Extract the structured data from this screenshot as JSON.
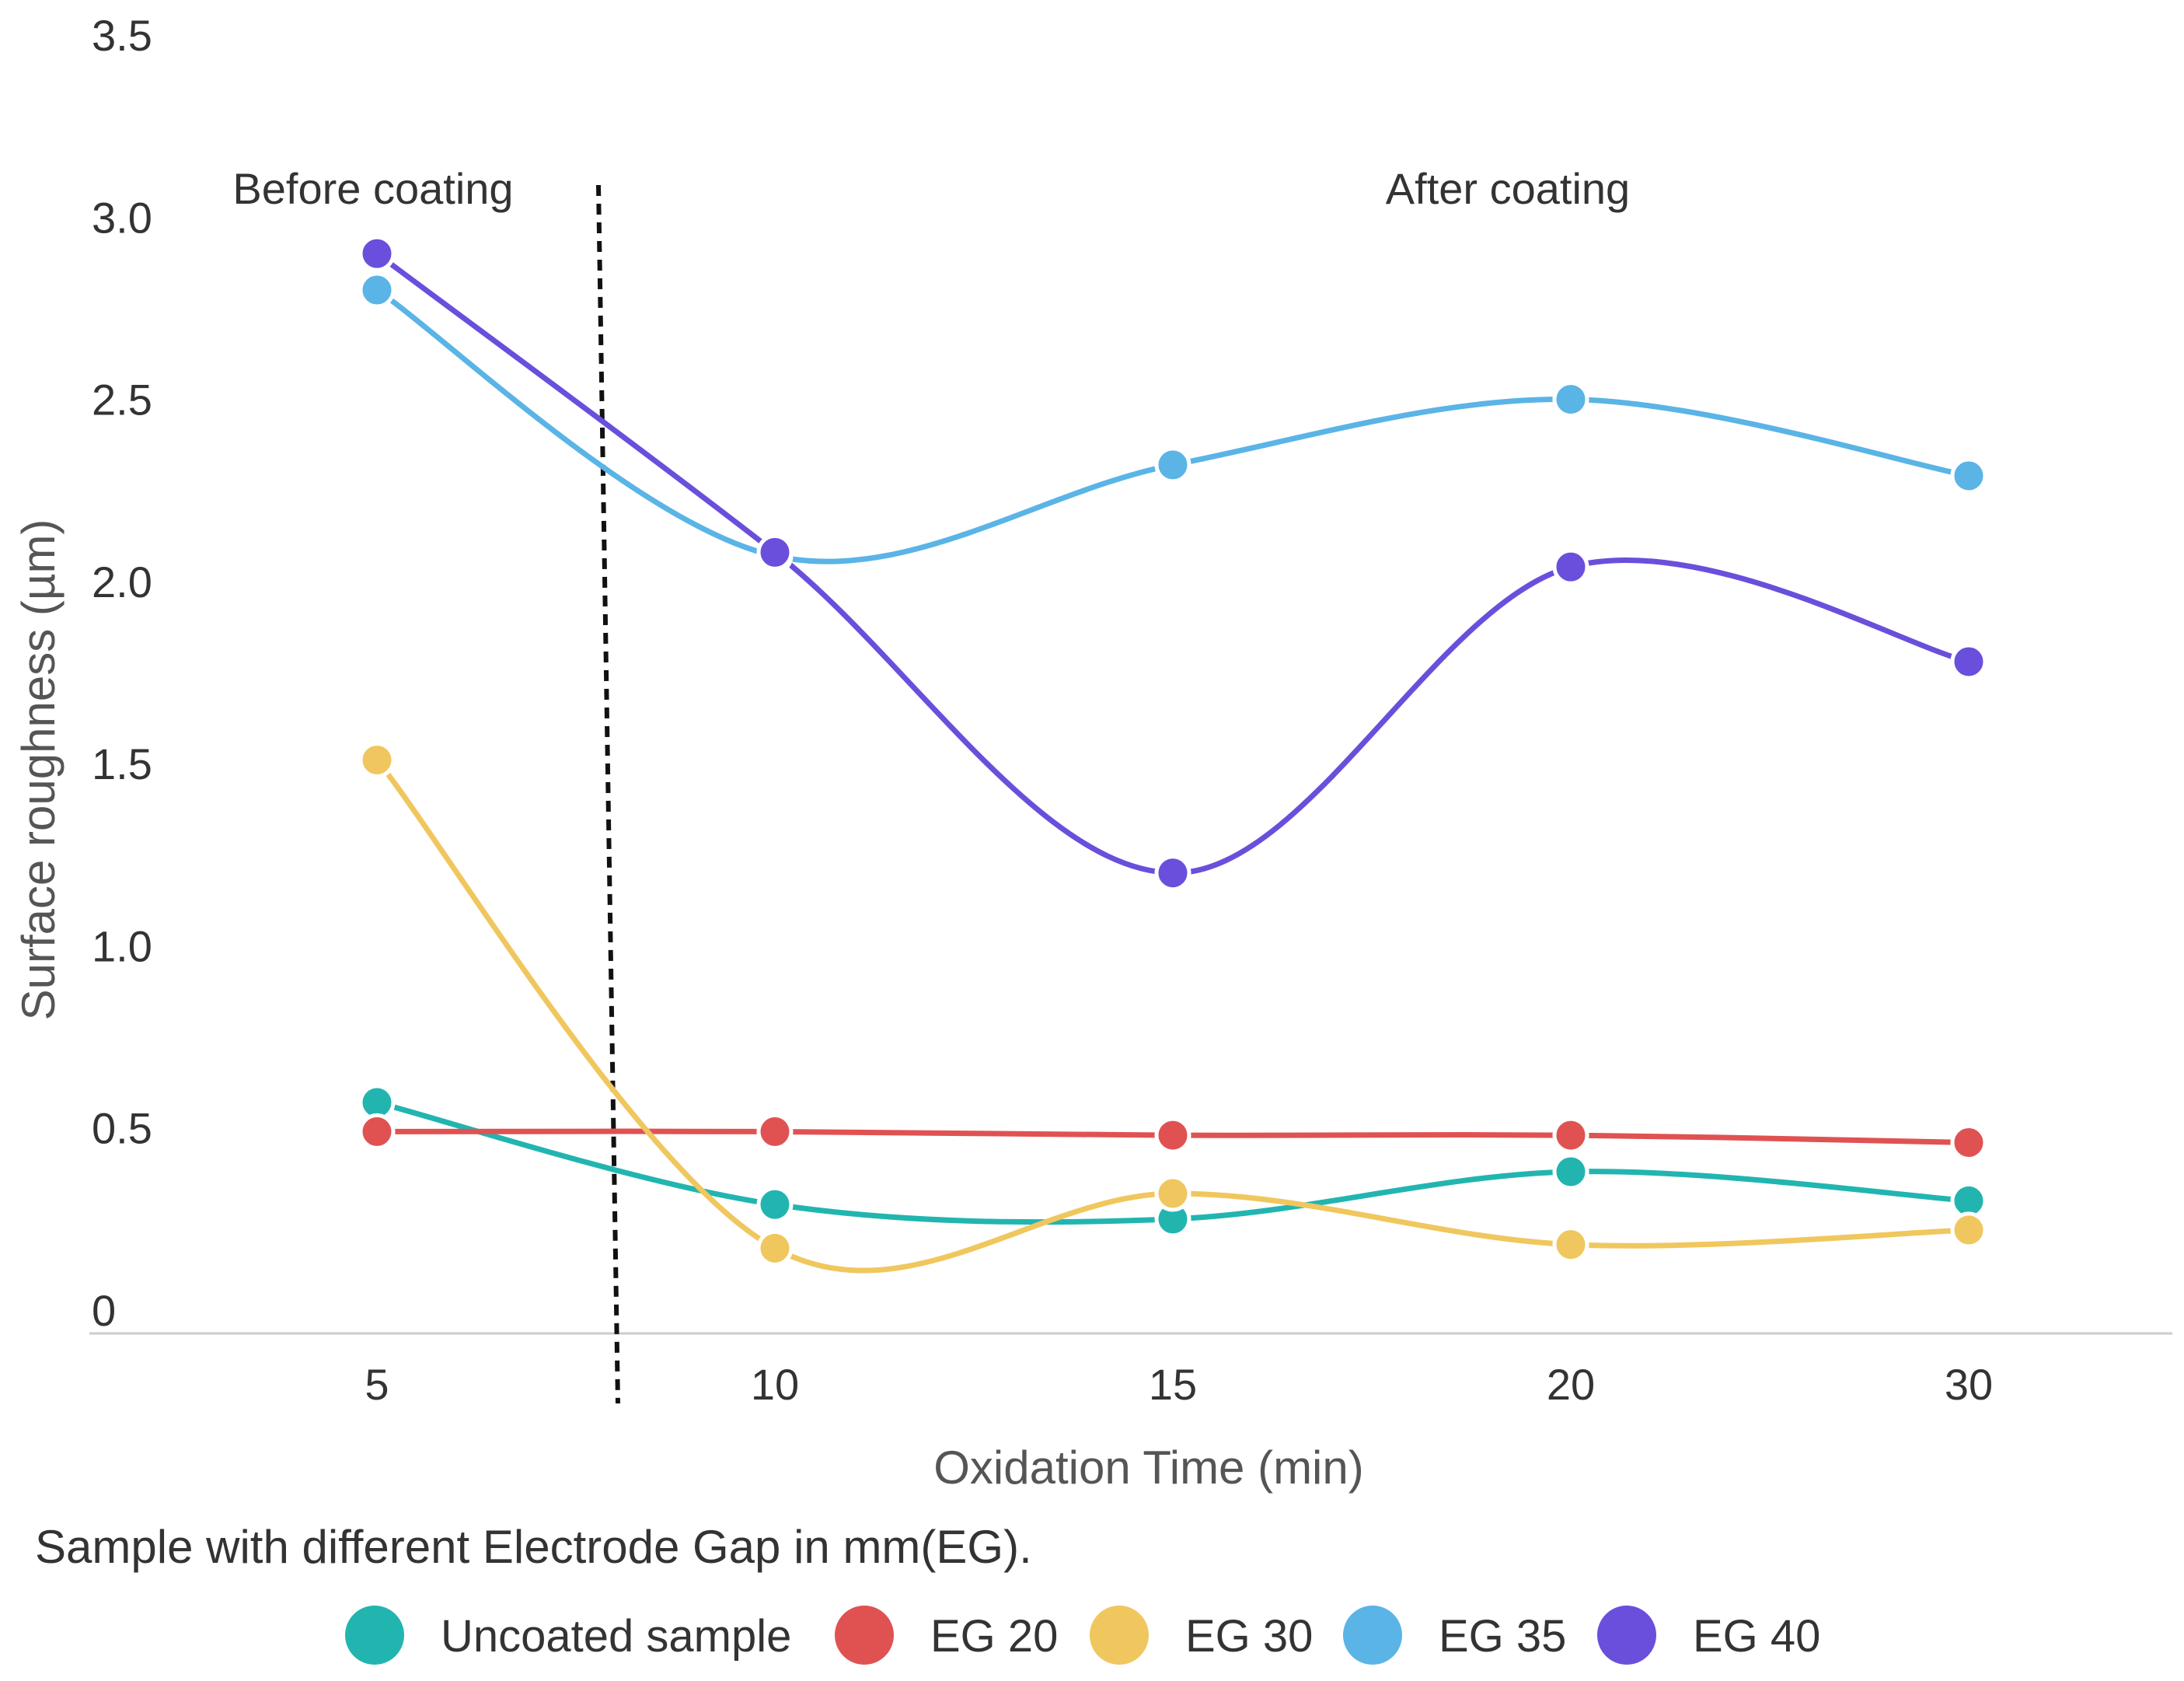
{
  "chart_data": {
    "type": "line",
    "xlabel": "Oxidation Time (min)",
    "ylabel": "Surface roughness (µm)",
    "categories": [
      "5",
      "10",
      "15",
      "20",
      "30"
    ],
    "y_ticks": [
      "0",
      "0.5",
      "1.0",
      "1.5",
      "2.0",
      "2.5",
      "3.0",
      "3.5"
    ],
    "ylim": [
      0,
      3.5
    ],
    "grid": false,
    "smooth": true,
    "legend_title": "Sample with different Electrode Gap in mm(EG).",
    "legend_position": "bottom",
    "annotations": {
      "before": "Before coating",
      "after": "After coating"
    },
    "series": [
      {
        "name": "Uncoated sample",
        "color": "#22b5b0",
        "values": [
          0.57,
          0.29,
          0.25,
          0.38,
          0.3
        ]
      },
      {
        "name": "EG 20",
        "color": "#e05252",
        "values": [
          0.49,
          0.49,
          0.48,
          0.48,
          0.46
        ]
      },
      {
        "name": "EG 30",
        "color": "#f0c75e",
        "values": [
          1.51,
          0.17,
          0.32,
          0.18,
          0.22
        ]
      },
      {
        "name": "EG 35",
        "color": "#5ab4e6",
        "values": [
          2.8,
          2.07,
          2.32,
          2.5,
          2.29
        ]
      },
      {
        "name": "EG 40",
        "color": "#6a4fdc",
        "values": [
          2.9,
          2.08,
          1.2,
          2.04,
          1.78
        ]
      }
    ]
  }
}
